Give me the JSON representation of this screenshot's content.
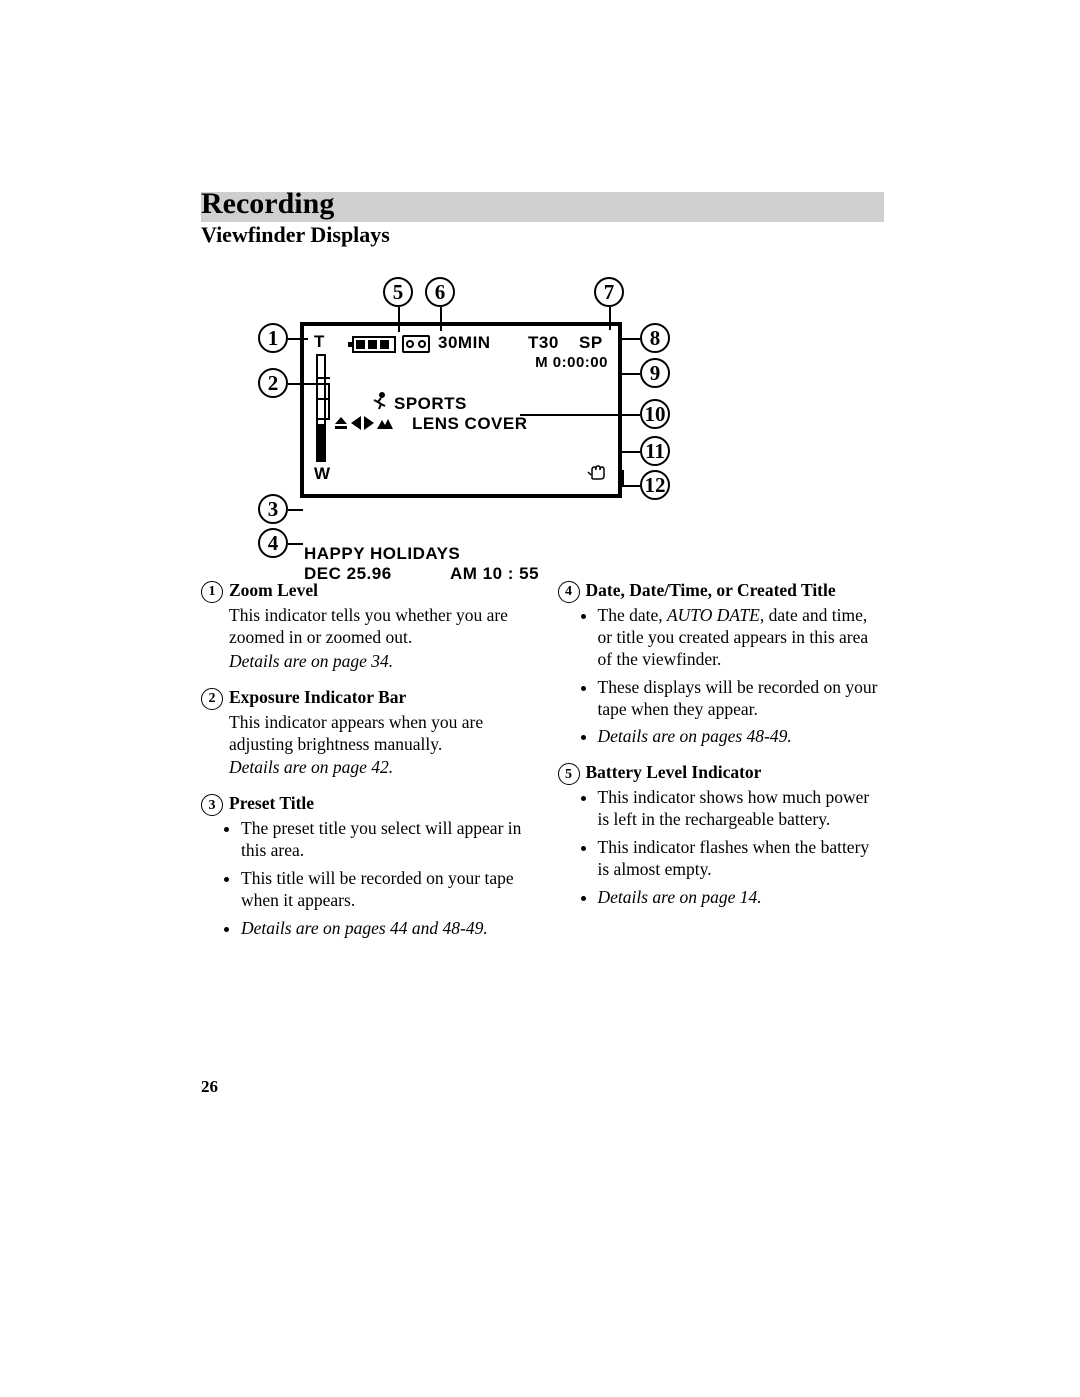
{
  "section_title": "Recording",
  "subtitle": "Viewfinder Displays",
  "title_bar_color": "#cfcfcf",
  "viewfinder": {
    "zoom_top_label": "T",
    "zoom_bottom_label": "W",
    "remaining": "30MIN",
    "tape_length": "T30",
    "speed": "SP",
    "memory_counter": "M 0:00:00",
    "program_label": "SPORTS",
    "warning": "LENS COVER",
    "preset_title": "HAPPY HOLIDAYS",
    "date": "DEC  25.96",
    "time": "AM  10 : 55",
    "battery_cells": 3,
    "zoom_fill_pct": 30
  },
  "callouts": {
    "left": [
      {
        "n": "1"
      },
      {
        "n": "2"
      },
      {
        "n": "3"
      },
      {
        "n": "4"
      }
    ],
    "top": [
      {
        "n": "5"
      },
      {
        "n": "6"
      },
      {
        "n": "7"
      }
    ],
    "right": [
      {
        "n": "8"
      },
      {
        "n": "9"
      },
      {
        "n": "10"
      },
      {
        "n": "11"
      },
      {
        "n": "12"
      }
    ]
  },
  "items_left": [
    {
      "n": "1",
      "title": "Zoom Level",
      "paras": [
        "This indicator tells you whether you are zoomed in or zoomed out."
      ],
      "details": "Details are on page 34."
    },
    {
      "n": "2",
      "title": "Exposure Indicator Bar",
      "paras": [
        "This indicator appears when you are adjusting brightness manually."
      ],
      "details": "Details are on page 42."
    },
    {
      "n": "3",
      "title": "Preset Title",
      "bullets": [
        "The preset title you select will appear in this area.",
        "This title will be recorded on your tape when it appears."
      ],
      "details_bullet": "Details are on pages 44 and 48-49."
    }
  ],
  "items_right": [
    {
      "n": "4",
      "title": "Date, Date/Time, or Created Title",
      "bullets": [
        "The date, AUTO DATE, date and time, or title you created appears in this area of the viewfinder.",
        "These displays will be recorded on your tape when they appear."
      ],
      "details_bullet": "Details are on pages 48-49.",
      "italic_in_first": "AUTO DATE"
    },
    {
      "n": "5",
      "title": "Battery Level Indicator",
      "bullets": [
        "This indicator shows how much power is left in the rechargeable battery.",
        "This indicator flashes when the battery is almost empty."
      ],
      "details_bullet": "Details are on page 14."
    }
  ],
  "page_number": "26"
}
